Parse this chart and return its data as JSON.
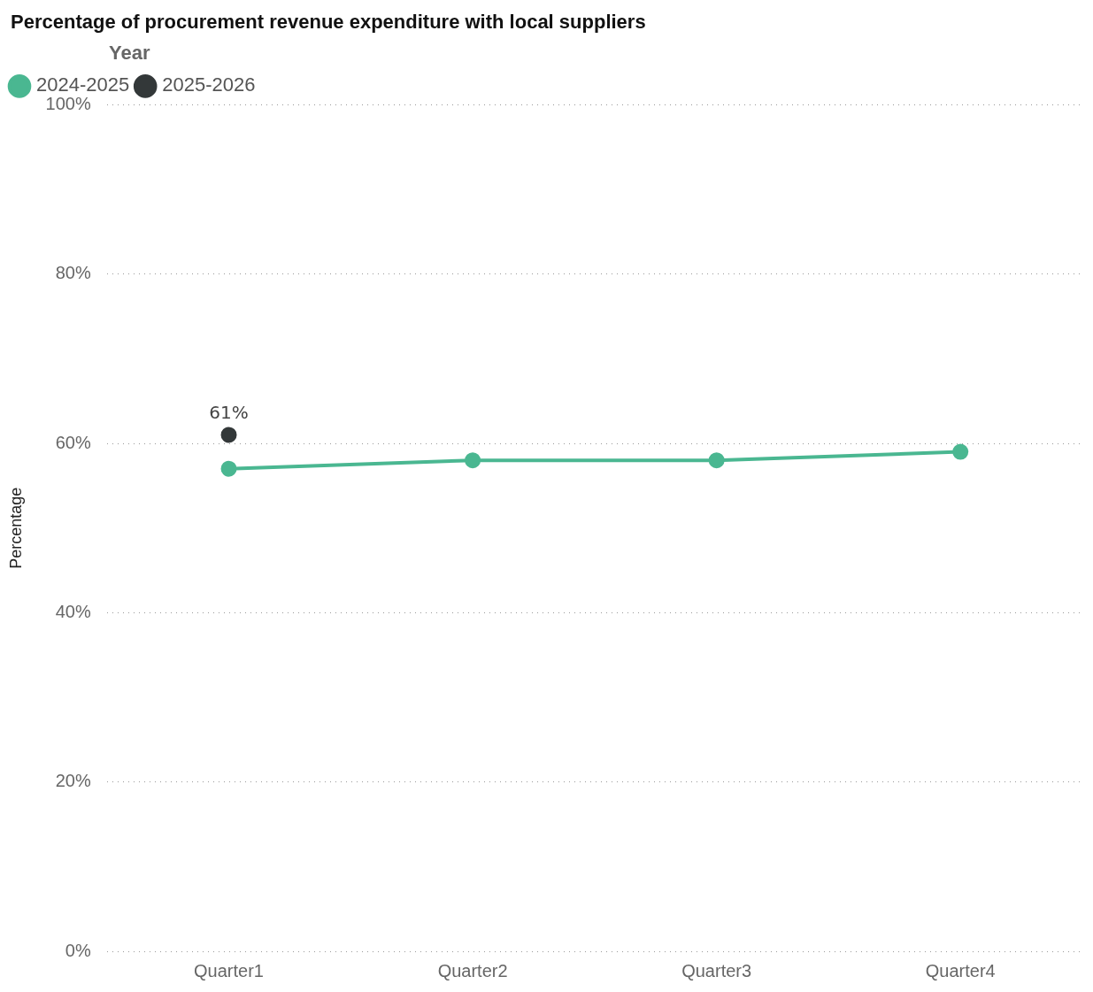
{
  "chart_data": {
    "type": "line",
    "title": "Percentage of procurement revenue expenditure with local suppliers",
    "ylabel": "Percentage",
    "legend_title": "Year",
    "legend": "top left",
    "categories": [
      "Quarter1",
      "Quarter2",
      "Quarter3",
      "Quarter4"
    ],
    "series": [
      {
        "name": "2024-2025",
        "color": "#4ab791",
        "values": [
          57,
          58,
          58,
          59
        ]
      },
      {
        "name": "2025-2026",
        "color": "#333839",
        "values": [
          61,
          null,
          null,
          null
        ],
        "value_labels": [
          "61%",
          null,
          null,
          null
        ]
      }
    ],
    "ylim": [
      0,
      100
    ],
    "yticks": [
      {
        "value": 0,
        "label": "0%"
      },
      {
        "value": 20,
        "label": "20%"
      },
      {
        "value": 40,
        "label": "40%"
      },
      {
        "value": 60,
        "label": "60%"
      },
      {
        "value": 80,
        "label": "80%"
      },
      {
        "value": 100,
        "label": "100%"
      }
    ],
    "grid": "y",
    "marker": "circle",
    "line_style": "solid"
  }
}
